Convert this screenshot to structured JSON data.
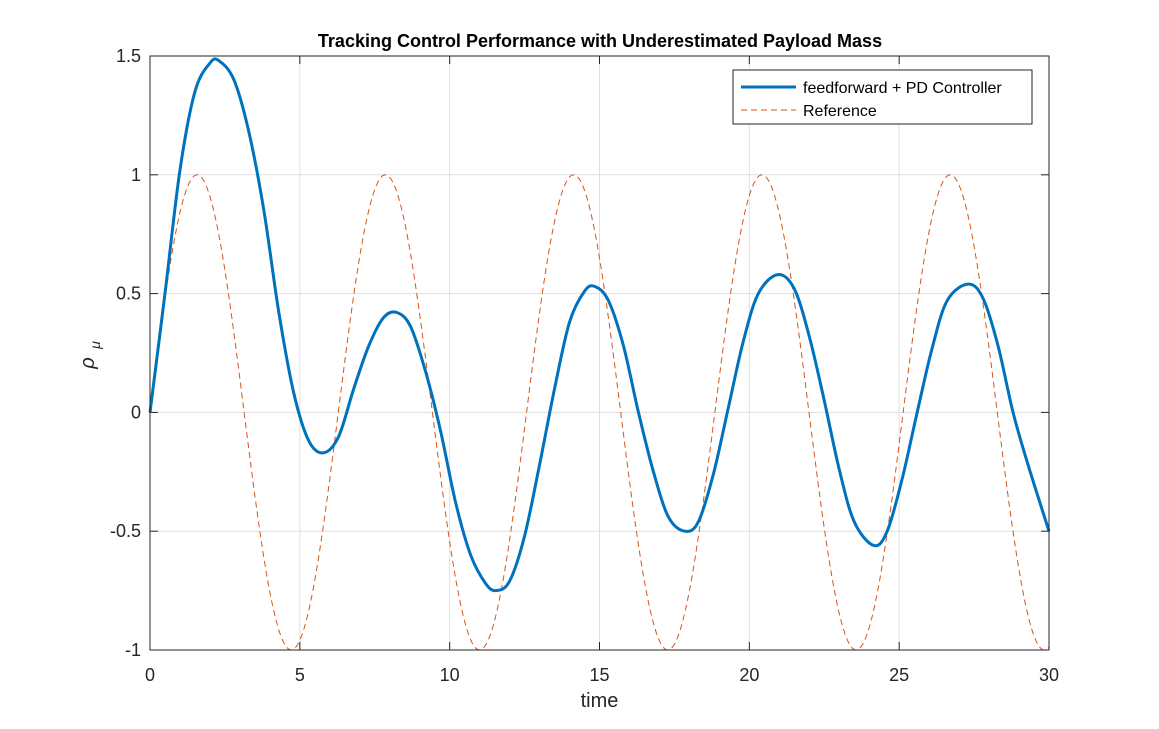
{
  "chart_data": {
    "type": "line",
    "title": "Tracking Control Performance with Underestimated Payload Mass",
    "xlabel": "time",
    "ylabel_symbol": "ρ",
    "ylabel_subscript": "μ",
    "xlim": [
      0,
      30
    ],
    "ylim": [
      -1,
      1.5
    ],
    "xticks": [
      0,
      5,
      10,
      15,
      20,
      25,
      30
    ],
    "yticks": [
      -1,
      -0.5,
      0,
      0.5,
      1,
      1.5
    ],
    "xtick_labels": [
      "0",
      "5",
      "10",
      "15",
      "20",
      "25",
      "30"
    ],
    "ytick_labels": [
      "-1",
      "-0.5",
      "0",
      "0.5",
      "1",
      "1.5"
    ],
    "grid": true,
    "legend_position": "top-right",
    "series": [
      {
        "name": "feedforward + PD Controller",
        "color": "#0072BD",
        "line_style": "solid",
        "points": [
          [
            0,
            0
          ],
          [
            0.5,
            0.5
          ],
          [
            1.0,
            1.02
          ],
          [
            1.5,
            1.35
          ],
          [
            2.0,
            1.47
          ],
          [
            2.3,
            1.48
          ],
          [
            2.8,
            1.4
          ],
          [
            3.3,
            1.18
          ],
          [
            3.8,
            0.85
          ],
          [
            4.3,
            0.42
          ],
          [
            4.8,
            0.08
          ],
          [
            5.3,
            -0.12
          ],
          [
            5.8,
            -0.17
          ],
          [
            6.3,
            -0.1
          ],
          [
            6.8,
            0.1
          ],
          [
            7.3,
            0.28
          ],
          [
            7.8,
            0.4
          ],
          [
            8.25,
            0.42
          ],
          [
            8.7,
            0.36
          ],
          [
            9.2,
            0.17
          ],
          [
            9.7,
            -0.08
          ],
          [
            10.2,
            -0.38
          ],
          [
            10.7,
            -0.6
          ],
          [
            11.2,
            -0.72
          ],
          [
            11.55,
            -0.75
          ],
          [
            12.0,
            -0.71
          ],
          [
            12.5,
            -0.52
          ],
          [
            13.0,
            -0.22
          ],
          [
            13.5,
            0.1
          ],
          [
            14.0,
            0.38
          ],
          [
            14.5,
            0.51
          ],
          [
            14.85,
            0.53
          ],
          [
            15.3,
            0.47
          ],
          [
            15.8,
            0.28
          ],
          [
            16.3,
            0.0
          ],
          [
            16.8,
            -0.25
          ],
          [
            17.3,
            -0.44
          ],
          [
            17.85,
            -0.5
          ],
          [
            18.3,
            -0.46
          ],
          [
            18.8,
            -0.26
          ],
          [
            19.3,
            0.02
          ],
          [
            19.8,
            0.3
          ],
          [
            20.3,
            0.5
          ],
          [
            20.95,
            0.58
          ],
          [
            21.5,
            0.52
          ],
          [
            22.0,
            0.32
          ],
          [
            22.5,
            0.05
          ],
          [
            23.0,
            -0.24
          ],
          [
            23.5,
            -0.46
          ],
          [
            24.15,
            -0.56
          ],
          [
            24.6,
            -0.5
          ],
          [
            25.1,
            -0.28
          ],
          [
            25.6,
            0.0
          ],
          [
            26.1,
            0.27
          ],
          [
            26.6,
            0.47
          ],
          [
            27.3,
            0.54
          ],
          [
            27.8,
            0.48
          ],
          [
            28.3,
            0.28
          ],
          [
            28.8,
            0.0
          ],
          [
            29.3,
            -0.22
          ],
          [
            30.0,
            -0.5
          ]
        ]
      },
      {
        "name": "Reference",
        "color": "#D95319",
        "line_style": "dashed",
        "function": "sin(t)",
        "t_range": [
          0,
          30
        ]
      }
    ]
  }
}
